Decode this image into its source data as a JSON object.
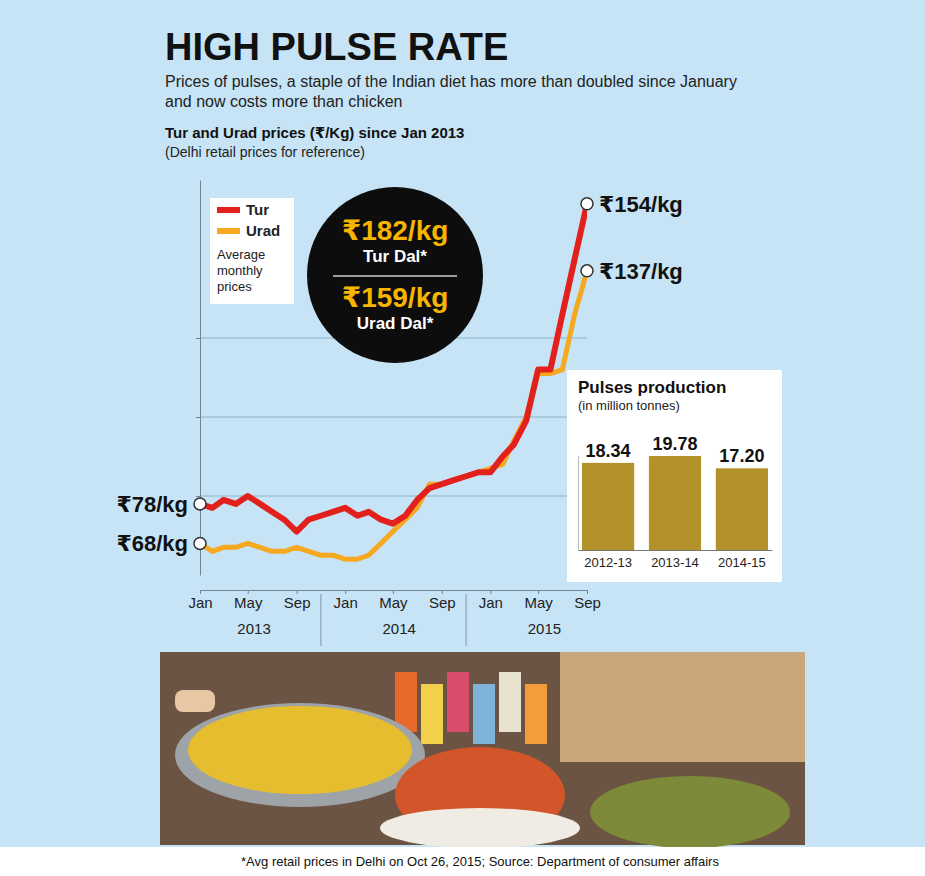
{
  "header": {
    "title": "HIGH PULSE RATE",
    "subtitle": "Prices of pulses, a staple of the Indian diet has more than doubled since January and now costs more than chicken"
  },
  "callout": [
    {
      "price": "₹182/kg",
      "label": "Tur Dal*"
    },
    {
      "price": "₹159/kg",
      "label": "Urad Dal*"
    }
  ],
  "footnote": "*Avg retail prices in Delhi on Oct 26, 2015; Source: Department of consumer affairs",
  "chart_data": [
    {
      "type": "line",
      "title": "Tur and Urad prices (₹/Kg) since Jan 2013",
      "subtitle": "(Delhi retail prices for reference)",
      "x": [
        "2013-01",
        "2013-02",
        "2013-03",
        "2013-04",
        "2013-05",
        "2013-06",
        "2013-07",
        "2013-08",
        "2013-09",
        "2013-10",
        "2013-11",
        "2013-12",
        "2014-01",
        "2014-02",
        "2014-03",
        "2014-04",
        "2014-05",
        "2014-06",
        "2014-07",
        "2014-08",
        "2014-09",
        "2014-10",
        "2014-11",
        "2014-12",
        "2015-01",
        "2015-02",
        "2015-03",
        "2015-04",
        "2015-05",
        "2015-06",
        "2015-07",
        "2015-08",
        "2015-09"
      ],
      "xlim": [
        "2013-01",
        "2015-09"
      ],
      "xticks": [
        {
          "value": "2013-01",
          "label": "Jan"
        },
        {
          "value": "2013-05",
          "label": "May"
        },
        {
          "value": "2013-09",
          "label": "Sep"
        },
        {
          "value": "2014-01",
          "label": "Jan"
        },
        {
          "value": "2014-05",
          "label": "May"
        },
        {
          "value": "2014-09",
          "label": "Sep"
        },
        {
          "value": "2015-01",
          "label": "Jan"
        },
        {
          "value": "2015-05",
          "label": "May"
        },
        {
          "value": "2015-09",
          "label": "Sep"
        }
      ],
      "year_labels": [
        "2013",
        "2014",
        "2015"
      ],
      "ylim": [
        60,
        160
      ],
      "yticks": [
        80,
        100,
        120
      ],
      "grid": true,
      "tick_labels": "x",
      "legend": "top-left",
      "legend_note": "Average monthly prices",
      "series": [
        {
          "name": "Tur",
          "color": "#e3211c",
          "values": [
            78,
            77,
            79,
            78,
            80,
            78,
            76,
            74,
            71,
            74,
            75,
            76,
            77,
            75,
            76,
            74,
            73,
            75,
            79,
            82,
            83,
            84,
            85,
            86,
            86,
            90,
            93,
            99,
            112,
            112,
            126,
            140,
            154
          ],
          "start_label": "₹78/kg",
          "end_label": "₹154/kg"
        },
        {
          "name": "Urad",
          "color": "#f6a821",
          "values": [
            68,
            66,
            67,
            67,
            68,
            67,
            66,
            66,
            67,
            66,
            65,
            65,
            64,
            64,
            65,
            68,
            71,
            74,
            77,
            83,
            83,
            84,
            85,
            86,
            87,
            88,
            94,
            100,
            111,
            111,
            112,
            126,
            137
          ],
          "start_label": "₹68/kg",
          "end_label": "₹137/kg"
        }
      ]
    },
    {
      "type": "bar",
      "title": "Pulses production",
      "subtitle": "(in million tonnes)",
      "categories": [
        "2012-13",
        "2013-14",
        "2014-15"
      ],
      "values": [
        18.34,
        19.78,
        17.2
      ],
      "value_labels": [
        "18.34",
        "19.78",
        "17.20"
      ],
      "color": "#b3922a",
      "ylim": [
        0,
        20
      ],
      "tick_labels": "x",
      "data_labels": true
    }
  ]
}
